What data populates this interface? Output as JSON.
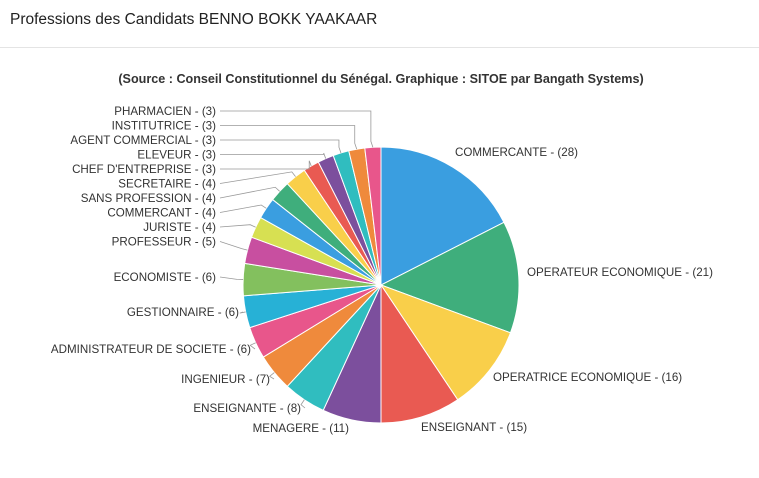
{
  "header": {
    "title": "Professions des Candidats BENNO BOKK YAAKAAR"
  },
  "chart_data": {
    "type": "pie",
    "subtitle": "(Source : Conseil Constitutionnel du Sénégal. Graphique : SITOE par Bangath Systems)",
    "slices": [
      {
        "label": "COMMERCANTE - (28)",
        "value": 28,
        "color": "#3a9ee0"
      },
      {
        "label": "OPERATEUR ECONOMIQUE - (21)",
        "value": 21,
        "color": "#3fae7c"
      },
      {
        "label": "OPERATRICE ECONOMIQUE - (16)",
        "value": 16,
        "color": "#f9cf4a"
      },
      {
        "label": "ENSEIGNANT - (15)",
        "value": 15,
        "color": "#e95a52"
      },
      {
        "label": "MENAGERE - (11)",
        "value": 11,
        "color": "#7c4f9d"
      },
      {
        "label": "ENSEIGNANTE - (8)",
        "value": 8,
        "color": "#30bdbf"
      },
      {
        "label": "INGENIEUR - (7)",
        "value": 7,
        "color": "#ef8a3c"
      },
      {
        "label": "ADMINISTRATEUR DE SOCIETE - (6)",
        "value": 6,
        "color": "#e8568b"
      },
      {
        "label": "GESTIONNAIRE - (6)",
        "value": 6,
        "color": "#27b1d6"
      },
      {
        "label": "ECONOMISTE - (6)",
        "value": 6,
        "color": "#83c05e"
      },
      {
        "label": "PROFESSEUR - (5)",
        "value": 5,
        "color": "#c84fa0"
      },
      {
        "label": "JURISTE - (4)",
        "value": 4,
        "color": "#d7e052"
      },
      {
        "label": "COMMERCANT - (4)",
        "value": 4,
        "color": "#3a9ee0"
      },
      {
        "label": "SANS PROFESSION - (4)",
        "value": 4,
        "color": "#3fae7c"
      },
      {
        "label": "SECRETAIRE - (4)",
        "value": 4,
        "color": "#f9cf4a"
      },
      {
        "label": "CHEF D'ENTREPRISE - (3)",
        "value": 3,
        "color": "#e95a52"
      },
      {
        "label": "ELEVEUR - (3)",
        "value": 3,
        "color": "#7c4f9d"
      },
      {
        "label": "AGENT COMMERCIAL - (3)",
        "value": 3,
        "color": "#30bdbf"
      },
      {
        "label": "INSTITUTRICE - (3)",
        "value": 3,
        "color": "#ef8a3c"
      },
      {
        "label": "PHARMACIEN - (3)",
        "value": 3,
        "color": "#e8568b"
      }
    ]
  }
}
